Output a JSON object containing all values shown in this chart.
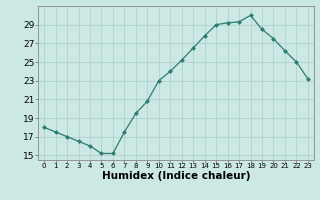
{
  "x": [
    0,
    1,
    2,
    3,
    4,
    5,
    6,
    7,
    8,
    9,
    10,
    11,
    12,
    13,
    14,
    15,
    16,
    17,
    18,
    19,
    20,
    21,
    22,
    23
  ],
  "y": [
    18.0,
    17.5,
    17.0,
    16.5,
    16.0,
    15.2,
    15.2,
    17.5,
    19.5,
    20.8,
    23.0,
    24.0,
    25.2,
    26.5,
    27.8,
    29.0,
    29.2,
    29.3,
    30.0,
    28.5,
    27.5,
    26.2,
    25.0,
    23.2
  ],
  "line_color": "#2e7d6e",
  "marker": "D",
  "marker_size": 2.5,
  "bg_color": "#cce8e4",
  "grid_color": "#aacfcb",
  "xlabel": "Humidex (Indice chaleur)",
  "ylabel_ticks": [
    15,
    17,
    19,
    21,
    23,
    25,
    27,
    29
  ],
  "xlim": [
    -0.5,
    23.5
  ],
  "ylim": [
    14.5,
    31.0
  ],
  "tick_fontsize": 6.5,
  "xlabel_fontsize": 7.5
}
